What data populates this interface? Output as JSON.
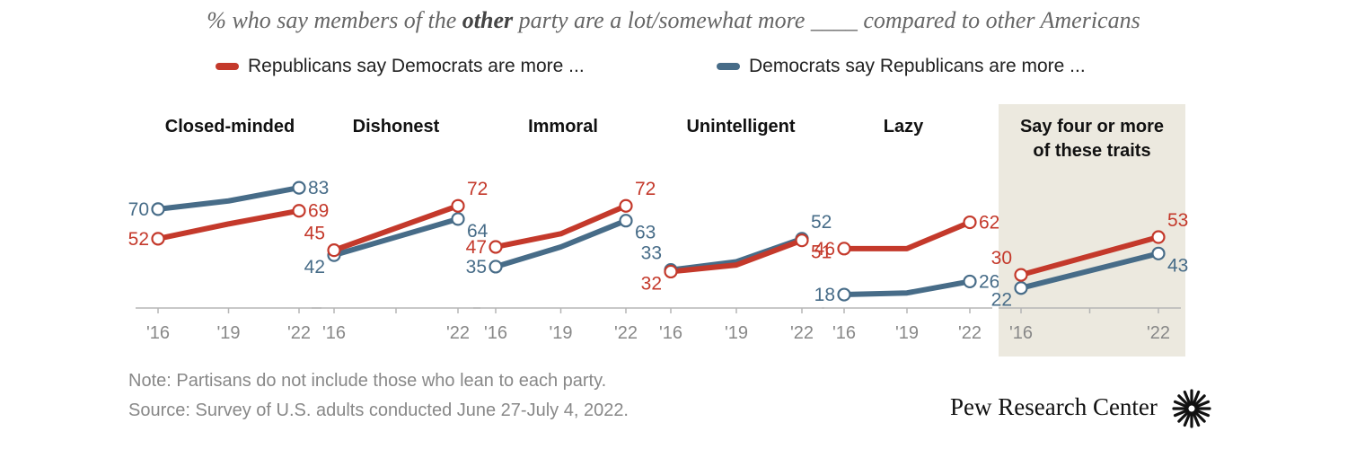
{
  "title": {
    "prefix": "% who say members of the ",
    "emphasis": "other",
    "suffix": " party are a lot/somewhat more ____ compared to other Americans"
  },
  "legend": {
    "republicans": "Republicans say Democrats are more ...",
    "democrats": "Democrats say Republicans are more ..."
  },
  "colors": {
    "republicans": "#c4392b",
    "democrats": "#476c88",
    "highlight_bg": "#ece9df",
    "axis": "#b5b5b5",
    "tick_text": "#888888"
  },
  "chart_data": [
    {
      "type": "line",
      "title": "Closed-minded",
      "x": [
        "'16",
        "'19",
        "'22"
      ],
      "series": [
        {
          "name": "Republicans say Democrats are more ...",
          "values": [
            52,
            61,
            69
          ]
        },
        {
          "name": "Democrats say Republicans are more ...",
          "values": [
            70,
            75,
            83
          ]
        }
      ],
      "labeled_points": [
        "'16",
        "'22"
      ]
    },
    {
      "type": "line",
      "title": "Dishonest",
      "x": [
        "'16",
        "'22"
      ],
      "series": [
        {
          "name": "Republicans say Democrats are more ...",
          "values": [
            45,
            72
          ]
        },
        {
          "name": "Democrats say Republicans are more ...",
          "values": [
            42,
            64
          ]
        }
      ],
      "labeled_points": [
        "'16",
        "'22"
      ]
    },
    {
      "type": "line",
      "title": "Immoral",
      "x": [
        "'16",
        "'19",
        "'22"
      ],
      "series": [
        {
          "name": "Republicans say Democrats are more ...",
          "values": [
            47,
            55,
            72
          ]
        },
        {
          "name": "Democrats say Republicans are more ...",
          "values": [
            35,
            47,
            63
          ]
        }
      ],
      "labeled_points": [
        "'16",
        "'22"
      ]
    },
    {
      "type": "line",
      "title": "Unintelligent",
      "x": [
        "'16",
        "'19",
        "'22"
      ],
      "series": [
        {
          "name": "Republicans say Democrats are more ...",
          "values": [
            32,
            36,
            51
          ]
        },
        {
          "name": "Democrats say Republicans are more ...",
          "values": [
            33,
            38,
            52
          ]
        }
      ],
      "labeled_points": [
        "'16",
        "'22"
      ]
    },
    {
      "type": "line",
      "title": "Lazy",
      "x": [
        "'16",
        "'19",
        "'22"
      ],
      "series": [
        {
          "name": "Republicans say Democrats are more ...",
          "values": [
            46,
            46,
            62
          ]
        },
        {
          "name": "Democrats say Republicans are more ...",
          "values": [
            18,
            19,
            26
          ]
        }
      ],
      "labeled_points": [
        "'16",
        "'22"
      ]
    },
    {
      "type": "line",
      "title": "Say four or more of these traits",
      "x": [
        "'16",
        "'22"
      ],
      "series": [
        {
          "name": "Republicans say Democrats are more ...",
          "values": [
            30,
            53
          ]
        },
        {
          "name": "Democrats say Republicans are more ...",
          "values": [
            22,
            43
          ]
        }
      ],
      "labeled_points": [
        "'16",
        "'22"
      ],
      "highlighted": true
    }
  ],
  "note": "Note: Partisans do not include those who lean to each party.",
  "source": "Source: Survey of U.S. adults conducted June 27-July 4, 2022.",
  "brand": "Pew Research Center"
}
